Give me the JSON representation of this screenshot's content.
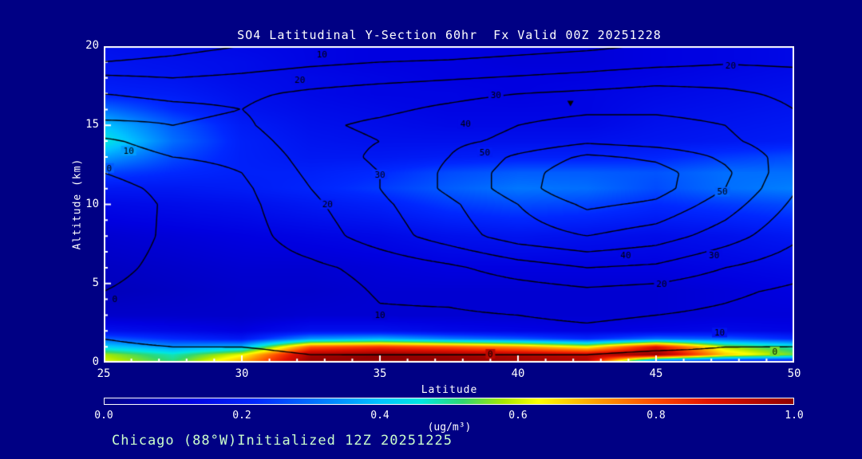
{
  "title": "SO4 Latitudinal Y-Section 60hr  Fx Valid 00Z 20251228",
  "footer": "Chicago (88°W)Initialized 12Z 20251225",
  "colors": {
    "background": "#000084",
    "frame": "#ffffff",
    "tick": "#ffffff",
    "title_text": "#ffffff",
    "footer_text": "#ccffcc",
    "contour_line": "#000000"
  },
  "chart_data": {
    "type": "heatmap",
    "title": "SO4 Latitudinal Y-Section 60hr  Fx Valid 00Z 20251228",
    "xlabel": "Latitude",
    "ylabel": "Altitude (km)",
    "xlim": [
      25,
      50
    ],
    "ylim": [
      0,
      20
    ],
    "x_ticks": [
      {
        "label": "25",
        "value": 25
      },
      {
        "label": "30",
        "value": 30
      },
      {
        "label": "35",
        "value": 35
      },
      {
        "label": "40",
        "value": 40
      },
      {
        "label": "45",
        "value": 45
      },
      {
        "label": "50",
        "value": 50
      }
    ],
    "y_ticks": [
      {
        "label": "0",
        "value": 0
      },
      {
        "label": "5",
        "value": 5
      },
      {
        "label": "10",
        "value": 10
      },
      {
        "label": "15",
        "value": 15
      },
      {
        "label": "20",
        "value": 20
      }
    ],
    "minor_tick_step": {
      "x": 1,
      "y": 1
    },
    "colorbar": {
      "min": 0.0,
      "max": 1.0,
      "label": "(ug/m³)",
      "ticks": [
        {
          "label": "0.0",
          "value": 0.0
        },
        {
          "label": "0.2",
          "value": 0.2
        },
        {
          "label": "0.4",
          "value": 0.4
        },
        {
          "label": "0.6",
          "value": 0.6
        },
        {
          "label": "0.8",
          "value": 0.8
        },
        {
          "label": "1.0",
          "value": 1.0
        }
      ],
      "stops": [
        [
          0.0,
          "#000088"
        ],
        [
          0.12,
          "#0000e0"
        ],
        [
          0.22,
          "#0028ff"
        ],
        [
          0.32,
          "#0080ff"
        ],
        [
          0.4,
          "#00c4ff"
        ],
        [
          0.46,
          "#00e8e0"
        ],
        [
          0.52,
          "#30d870"
        ],
        [
          0.58,
          "#a8e800"
        ],
        [
          0.63,
          "#ffff00"
        ],
        [
          0.72,
          "#ff9800"
        ],
        [
          0.8,
          "#ff4800"
        ],
        [
          0.88,
          "#e01000"
        ],
        [
          1.0,
          "#900000"
        ]
      ]
    },
    "shaded_field": {
      "units": "ug/m³",
      "x": [
        25,
        27.5,
        30,
        32.5,
        35,
        37.5,
        40,
        42.5,
        45,
        47.5,
        50
      ],
      "y": [
        0,
        0.5,
        1,
        1.5,
        2,
        3,
        4.5,
        6,
        8,
        10,
        11,
        12,
        13,
        14,
        15,
        16,
        17,
        18,
        19,
        20
      ],
      "values": [
        [
          0.62,
          0.52,
          0.72,
          1.0,
          1.0,
          1.0,
          0.98,
          0.95,
          0.08,
          0.08,
          0.08
        ],
        [
          0.58,
          0.48,
          0.62,
          0.97,
          1.0,
          0.98,
          0.95,
          0.93,
          1.0,
          0.68,
          0.55
        ],
        [
          0.42,
          0.34,
          0.38,
          0.78,
          0.82,
          0.78,
          0.72,
          0.62,
          0.88,
          0.58,
          0.48
        ],
        [
          0.28,
          0.22,
          0.18,
          0.35,
          0.38,
          0.32,
          0.28,
          0.22,
          0.3,
          0.28,
          0.22
        ],
        [
          0.16,
          0.14,
          0.12,
          0.16,
          0.16,
          0.14,
          0.13,
          0.12,
          0.13,
          0.14,
          0.13
        ],
        [
          0.09,
          0.09,
          0.09,
          0.1,
          0.1,
          0.1,
          0.1,
          0.1,
          0.1,
          0.11,
          0.11
        ],
        [
          0.07,
          0.08,
          0.09,
          0.09,
          0.1,
          0.1,
          0.1,
          0.1,
          0.1,
          0.11,
          0.12
        ],
        [
          0.08,
          0.09,
          0.1,
          0.1,
          0.11,
          0.12,
          0.12,
          0.12,
          0.12,
          0.13,
          0.14
        ],
        [
          0.1,
          0.11,
          0.12,
          0.13,
          0.14,
          0.16,
          0.17,
          0.16,
          0.15,
          0.16,
          0.18
        ],
        [
          0.14,
          0.15,
          0.16,
          0.18,
          0.2,
          0.24,
          0.26,
          0.25,
          0.22,
          0.24,
          0.26
        ],
        [
          0.18,
          0.18,
          0.19,
          0.21,
          0.24,
          0.28,
          0.31,
          0.3,
          0.26,
          0.3,
          0.32
        ],
        [
          0.25,
          0.22,
          0.2,
          0.2,
          0.22,
          0.26,
          0.28,
          0.28,
          0.27,
          0.3,
          0.3
        ],
        [
          0.36,
          0.26,
          0.2,
          0.18,
          0.18,
          0.19,
          0.2,
          0.2,
          0.21,
          0.24,
          0.26
        ],
        [
          0.46,
          0.3,
          0.2,
          0.17,
          0.16,
          0.16,
          0.16,
          0.16,
          0.17,
          0.18,
          0.19
        ],
        [
          0.4,
          0.28,
          0.19,
          0.16,
          0.15,
          0.14,
          0.14,
          0.14,
          0.16,
          0.17,
          0.18
        ],
        [
          0.3,
          0.22,
          0.17,
          0.15,
          0.14,
          0.13,
          0.13,
          0.13,
          0.15,
          0.16,
          0.17
        ],
        [
          0.2,
          0.19,
          0.16,
          0.14,
          0.13,
          0.13,
          0.12,
          0.13,
          0.14,
          0.15,
          0.16
        ],
        [
          0.18,
          0.17,
          0.15,
          0.14,
          0.13,
          0.12,
          0.12,
          0.12,
          0.13,
          0.14,
          0.15
        ],
        [
          0.17,
          0.16,
          0.15,
          0.13,
          0.12,
          0.12,
          0.11,
          0.11,
          0.12,
          0.13,
          0.14
        ],
        [
          0.16,
          0.15,
          0.14,
          0.13,
          0.12,
          0.12,
          0.11,
          0.11,
          0.12,
          0.13,
          0.14
        ]
      ]
    },
    "contour_field": {
      "levels": [
        0,
        10,
        20,
        30,
        40,
        50,
        60,
        70
      ],
      "x": [
        25,
        27.5,
        30,
        32.5,
        35,
        37.5,
        40,
        42.5,
        45,
        47.5,
        50
      ],
      "y": [
        0,
        0.5,
        1,
        1.5,
        2,
        3,
        4.5,
        6,
        8,
        10,
        11,
        12,
        13,
        14,
        15,
        16,
        17,
        18,
        19,
        20
      ],
      "values": [
        [
          -4,
          -3,
          -2,
          -1,
          -1,
          -1,
          -1,
          -1,
          -2,
          -2,
          -1
        ],
        [
          -3,
          -2,
          -1,
          0,
          0,
          0,
          0,
          0,
          -1,
          -1,
          -1
        ],
        [
          -2,
          0,
          0,
          1,
          2,
          2,
          2,
          2,
          1,
          0,
          0
        ],
        [
          0,
          3,
          2,
          2,
          3,
          4,
          5,
          5,
          3,
          2,
          1
        ],
        [
          4,
          6,
          4,
          3,
          6,
          6,
          7,
          8,
          6,
          5,
          3
        ],
        [
          3,
          6,
          5,
          4,
          9,
          9,
          10,
          12,
          10,
          8,
          5
        ],
        [
          0,
          4,
          5,
          5,
          11,
          12,
          15,
          18,
          16,
          12,
          8
        ],
        [
          -3,
          3,
          5,
          8,
          13,
          18,
          25,
          30,
          28,
          20,
          14
        ],
        [
          -6,
          2,
          6,
          15,
          25,
          35,
          45,
          50,
          45,
          35,
          22
        ],
        [
          -7,
          2,
          7,
          18,
          28,
          38,
          50,
          62,
          58,
          45,
          28
        ],
        [
          -4,
          3,
          8,
          20,
          30,
          42,
          55,
          70,
          64,
          50,
          31
        ],
        [
          0,
          6,
          10,
          22,
          30,
          42,
          55,
          68,
          64,
          52,
          33
        ],
        [
          4,
          10,
          12,
          24,
          32,
          40,
          52,
          62,
          58,
          48,
          35
        ],
        [
          8,
          15,
          15,
          26,
          30,
          38,
          42,
          48,
          45,
          42,
          34
        ],
        [
          18,
          20,
          18,
          28,
          32,
          36,
          40,
          44,
          44,
          40,
          32
        ],
        [
          24,
          22,
          20,
          26,
          28,
          32,
          36,
          38,
          38,
          36,
          30
        ],
        [
          20,
          18,
          18,
          22,
          25,
          27,
          30,
          32,
          34,
          32,
          28
        ],
        [
          12,
          10,
          12,
          15,
          17,
          19,
          21,
          23,
          26,
          26,
          24
        ],
        [
          0,
          2,
          5,
          8,
          10,
          11,
          13,
          15,
          17,
          19,
          18
        ],
        [
          -5,
          -3,
          0,
          2,
          3,
          4,
          6,
          8,
          11,
          13,
          12
        ]
      ]
    },
    "contour_labels": [
      {
        "text": "10",
        "lat": 32.9,
        "alt": 19.5
      },
      {
        "text": "20",
        "lat": 32.1,
        "alt": 17.9
      },
      {
        "text": "30",
        "lat": 39.2,
        "alt": 16.9
      },
      {
        "text": "40",
        "lat": 38.1,
        "alt": 15.1
      },
      {
        "text": "50",
        "lat": 38.8,
        "alt": 13.3
      },
      {
        "text": "20",
        "lat": 47.7,
        "alt": 18.8
      },
      {
        "text": "10",
        "lat": 25.9,
        "alt": 13.4
      },
      {
        "text": "0",
        "lat": 25.2,
        "alt": 12.3
      },
      {
        "text": "20",
        "lat": 33.1,
        "alt": 10.0
      },
      {
        "text": "30",
        "lat": 35.0,
        "alt": 11.9
      },
      {
        "text": "0",
        "lat": 25.4,
        "alt": 4.0
      },
      {
        "text": "10",
        "lat": 35.0,
        "alt": 3.0
      },
      {
        "text": "0",
        "lat": 39.0,
        "alt": 0.55
      },
      {
        "text": "50",
        "lat": 47.4,
        "alt": 10.8
      },
      {
        "text": "40",
        "lat": 43.9,
        "alt": 6.8
      },
      {
        "text": "30",
        "lat": 47.1,
        "alt": 6.8
      },
      {
        "text": "20",
        "lat": 45.2,
        "alt": 5.0
      },
      {
        "text": "10",
        "lat": 47.3,
        "alt": 1.9
      },
      {
        "text": "0",
        "lat": 49.3,
        "alt": 0.7
      }
    ],
    "min_marker": {
      "lat": 41.9,
      "alt": 16.4
    }
  }
}
